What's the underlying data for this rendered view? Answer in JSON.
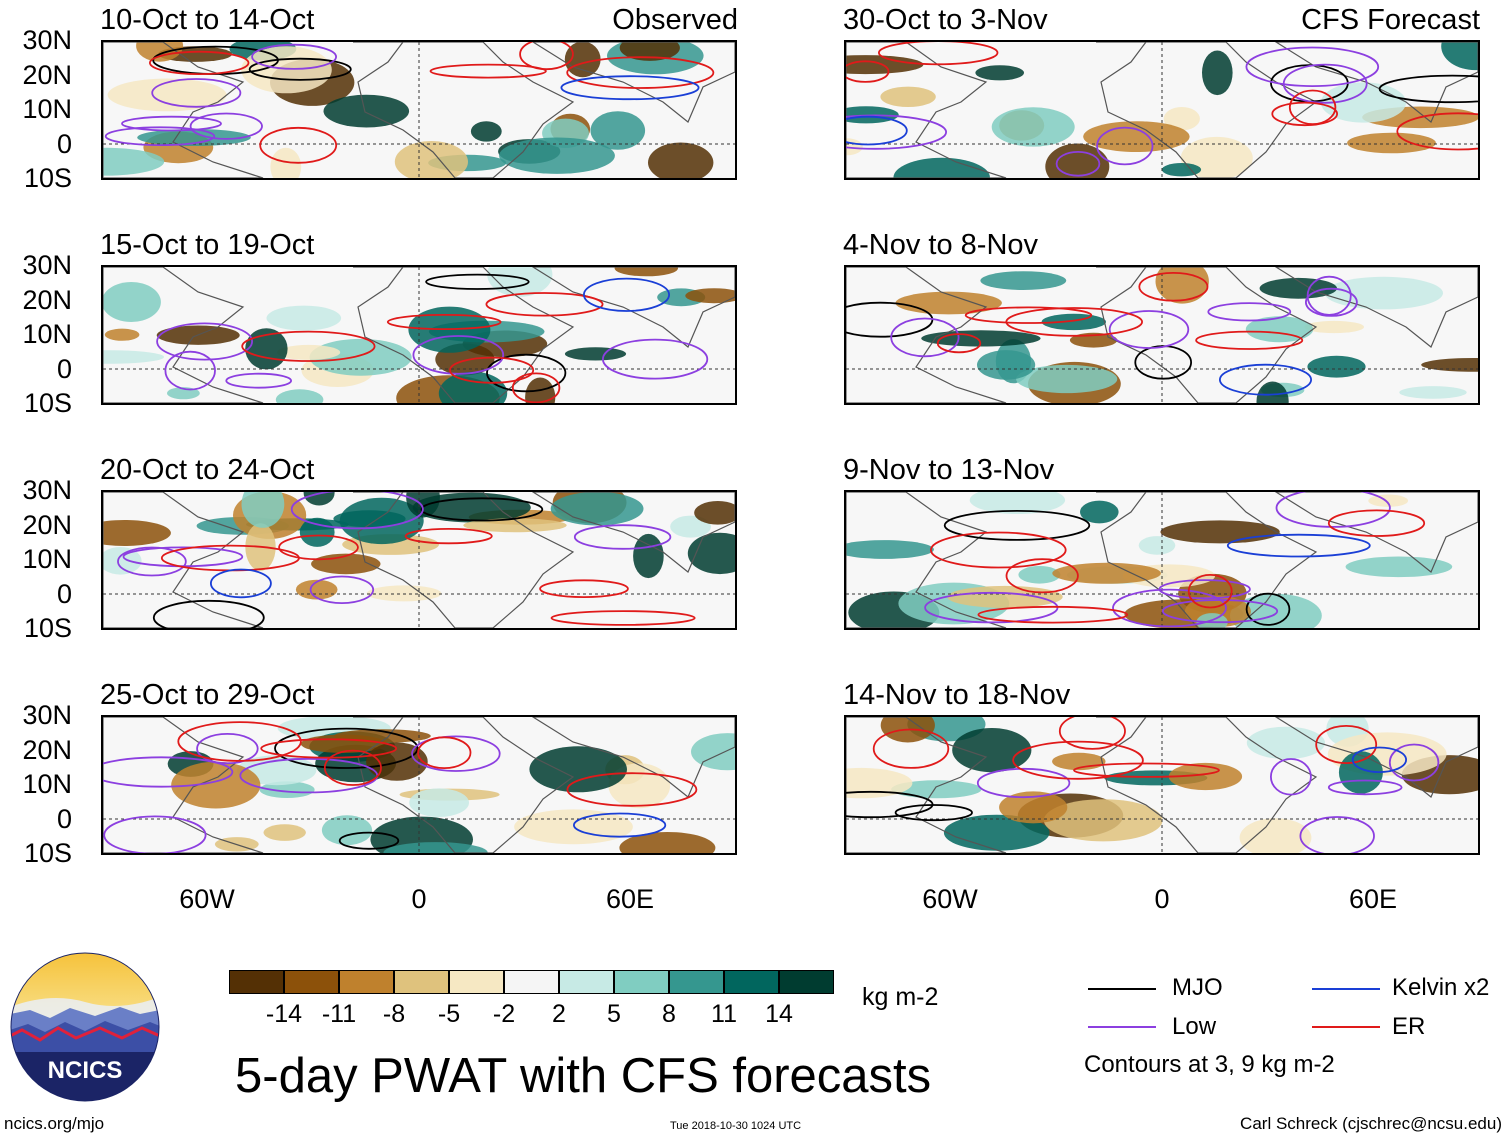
{
  "panels": {
    "left": [
      {
        "title": "10-Oct to 14-Oct",
        "tag": "Observed"
      },
      {
        "title": "15-Oct to 19-Oct",
        "tag": ""
      },
      {
        "title": "20-Oct to 24-Oct",
        "tag": ""
      },
      {
        "title": "25-Oct to 29-Oct",
        "tag": ""
      }
    ],
    "right": [
      {
        "title": "30-Oct to 3-Nov",
        "tag": "CFS Forecast"
      },
      {
        "title": "4-Nov to 8-Nov",
        "tag": ""
      },
      {
        "title": "9-Nov to 13-Nov",
        "tag": ""
      },
      {
        "title": "14-Nov to 18-Nov",
        "tag": ""
      }
    ]
  },
  "lat_labels": [
    "30N",
    "20N",
    "10N",
    "0",
    "10S"
  ],
  "lon_labels": [
    "60W",
    "0",
    "60E"
  ],
  "colorbar": {
    "colors": [
      "#543005",
      "#8c510a",
      "#bf812d",
      "#dfc27d",
      "#f6e8c3",
      "#f5f5f5",
      "#c7eae5",
      "#80cdc1",
      "#35978f",
      "#01665e",
      "#003c30"
    ],
    "labels": [
      "-14",
      "-11",
      "-8",
      "-5",
      "-2",
      "2",
      "5",
      "8",
      "11",
      "14"
    ],
    "units": "kg m-2"
  },
  "legend": {
    "mjo": {
      "label": "MJO",
      "color": "#000000"
    },
    "kelvin": {
      "label": "Kelvin x2",
      "color": "#1a3fd6"
    },
    "low": {
      "label": "Low",
      "color": "#8c3fe0"
    },
    "er": {
      "label": "ER",
      "color": "#e01a1a"
    },
    "note": "Contours at 3, 9 kg m-2"
  },
  "footer": {
    "title": "5-day PWAT with CFS forecasts",
    "logo_text": "NCICS",
    "url": "ncics.org/mjo",
    "timestamp": "Tue 2018-10-30 1024 UTC",
    "credit": "Carl Schreck (cjschrec@ncsu.edu)"
  }
}
